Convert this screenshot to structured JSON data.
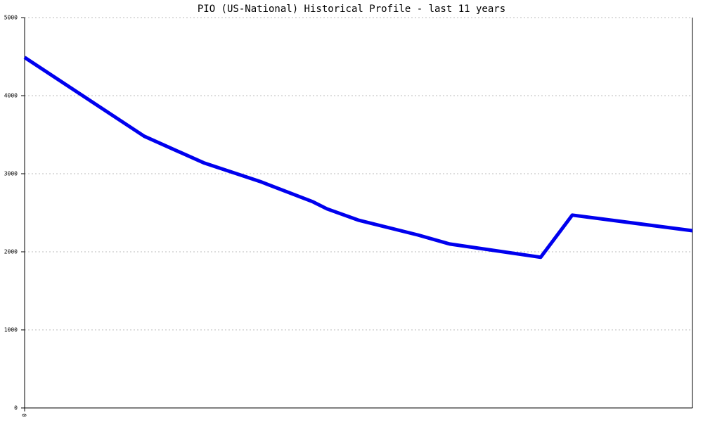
{
  "chart_data": {
    "type": "line",
    "title": "PIO (US-National) Historical Profile - last 11 years",
    "x": [
      0,
      1.97,
      2.95,
      3.88,
      4.75,
      4.98,
      5.5,
      6.48,
      7.0,
      8.5,
      9.02,
      11
    ],
    "values": [
      4490,
      3480,
      3140,
      2900,
      2640,
      2550,
      2405,
      2215,
      2100,
      1930,
      2470,
      2270
    ],
    "color": "#0000ee",
    "xlim": [
      0,
      11
    ],
    "xticks": [
      0
    ],
    "ylim": [
      0,
      5000
    ],
    "yticks": [
      0,
      1000,
      2000,
      3000,
      4000,
      5000
    ],
    "grid": true
  }
}
